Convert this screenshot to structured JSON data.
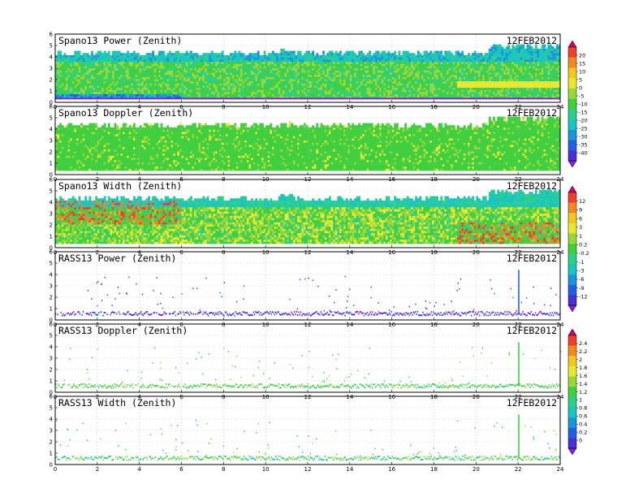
{
  "chart_data": {
    "type": "heatmap",
    "date_label": "12FEB2012",
    "x_ticks": [
      "0",
      "2",
      "4",
      "6",
      "8",
      "10",
      "12",
      "14",
      "16",
      "18",
      "20",
      "22",
      "24"
    ],
    "y_ticks": [
      "0",
      "1",
      "2",
      "3",
      "4",
      "5",
      "6"
    ],
    "xlim": [
      0,
      24
    ],
    "ylim": [
      0,
      6
    ],
    "panels": [
      {
        "title": "Spano13 Power (Zenith)",
        "kind": "spano",
        "variable": "power"
      },
      {
        "title": "Spano13 Doppler (Zenith)",
        "kind": "spano",
        "variable": "doppler"
      },
      {
        "title": "Spano13 Width (Zenith)",
        "kind": "spano",
        "variable": "width"
      },
      {
        "title": "RASS13 Power (Zenith)",
        "kind": "rass",
        "variable": "power"
      },
      {
        "title": "RASS13 Doppler (Zenith)",
        "kind": "rass",
        "variable": "doppler"
      },
      {
        "title": "RASS13 Width (Zenith)",
        "kind": "rass",
        "variable": "width"
      }
    ],
    "colorbars": [
      {
        "labels": [
          "20",
          "15",
          "10",
          "5",
          "0",
          "-5",
          "-10",
          "-15",
          "-20",
          "-25",
          "-30",
          "-35",
          "-40"
        ],
        "colors": [
          "#d0006f",
          "#f0402a",
          "#f08a20",
          "#f3c620",
          "#e8e830",
          "#9ad83a",
          "#3fcf3f",
          "#2bd08a",
          "#18c4c4",
          "#1a96d8",
          "#2060e0",
          "#4b2fd4",
          "#8a22d0"
        ]
      },
      {
        "labels": [
          "12",
          "9",
          "6",
          "3",
          "1",
          "0.2",
          "-0.2",
          "-1",
          "-3",
          "-6",
          "-9",
          "-12"
        ],
        "colors": [
          "#d0006f",
          "#f0402a",
          "#f08a20",
          "#f3c620",
          "#e8e830",
          "#9ad83a",
          "#3fcf3f",
          "#2bd08a",
          "#18c4c4",
          "#1a96d8",
          "#2060e0",
          "#4b2fd4",
          "#8a22d0"
        ]
      },
      {
        "labels": [
          "2.4",
          "2.2",
          "2",
          "1.8",
          "1.6",
          "1.4",
          "1.2",
          "1",
          "0.8",
          "0.6",
          "0.4",
          "0.2",
          "0"
        ],
        "colors": [
          "#d0006f",
          "#f0402a",
          "#f08a20",
          "#f3c620",
          "#e8e830",
          "#9ad83a",
          "#3fcf3f",
          "#2bd08a",
          "#18c4c4",
          "#1a96d8",
          "#2060e0",
          "#4b2fd4",
          "#8a22d0"
        ]
      }
    ]
  }
}
